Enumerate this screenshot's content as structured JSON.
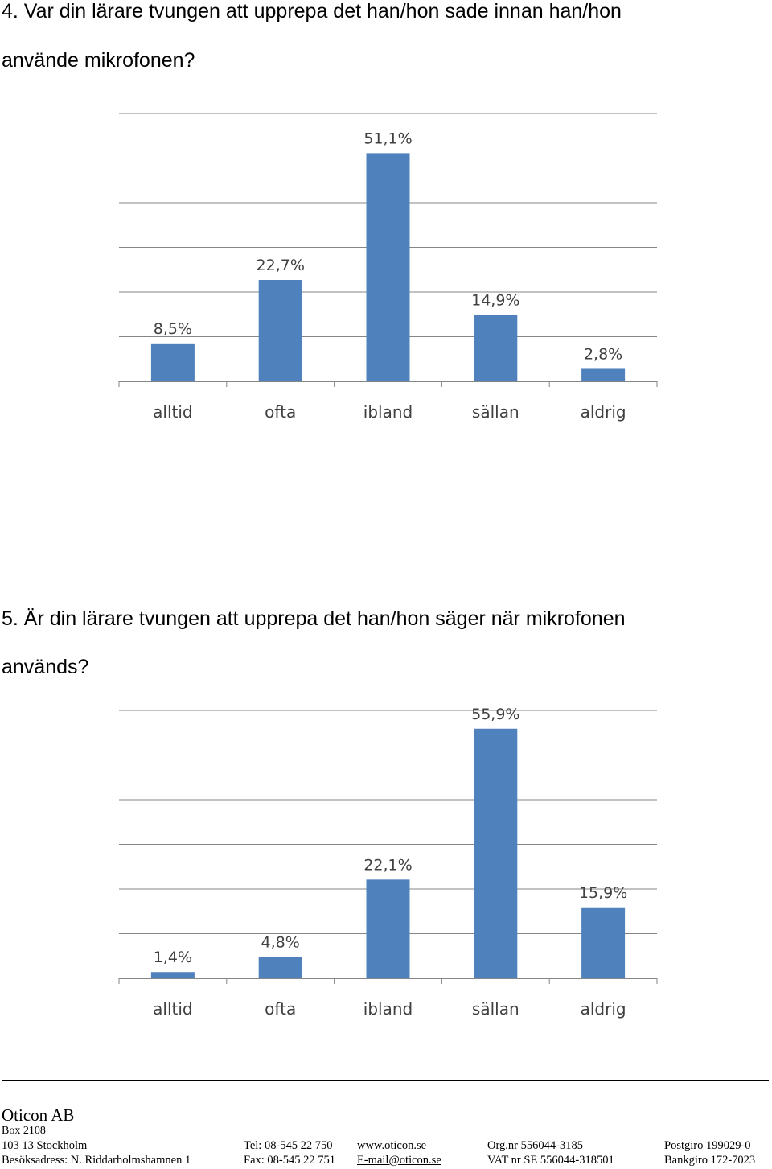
{
  "questions": {
    "q4": {
      "line1": "4. Var din lärare tvungen att upprepa det han/hon sade innan han/hon",
      "line2": "använde mikrofonen?"
    },
    "q5": {
      "line1": "5. Är din lärare tvungen att upprepa det han/hon säger när mikrofonen",
      "line2": "används?"
    }
  },
  "chart_data": [
    {
      "type": "bar",
      "categories": [
        "alltid",
        "ofta",
        "ibland",
        "sällan",
        "aldrig"
      ],
      "values": [
        8.5,
        22.7,
        51.1,
        14.9,
        2.8
      ],
      "value_labels": [
        "8,5%",
        "22,7%",
        "51,1%",
        "14,9%",
        "2,8%"
      ],
      "ylim": [
        0,
        60
      ],
      "grid": true,
      "bar_color": "#4F81BD"
    },
    {
      "type": "bar",
      "categories": [
        "alltid",
        "ofta",
        "ibland",
        "sällan",
        "aldrig"
      ],
      "values": [
        1.4,
        4.8,
        22.1,
        55.9,
        15.9
      ],
      "value_labels": [
        "1,4%",
        "4,8%",
        "22,1%",
        "55,9%",
        "15,9%"
      ],
      "ylim": [
        0,
        60
      ],
      "grid": true,
      "bar_color": "#4F81BD"
    }
  ],
  "footer": {
    "company": "Oticon AB",
    "box": "Box 2108",
    "row1": [
      "103 13 Stockholm",
      "Tel:  08-545 22 750",
      "www.oticon.se",
      "Org.nr 556044-3185",
      "Postgiro  199029-0"
    ],
    "row2": [
      "Besöksadress: N. Riddarholmshamnen 1",
      "Fax: 08-545 22 751",
      "E-mail@oticon.se",
      "VAT nr SE 556044-318501",
      "Bankgiro 172-7023"
    ]
  }
}
